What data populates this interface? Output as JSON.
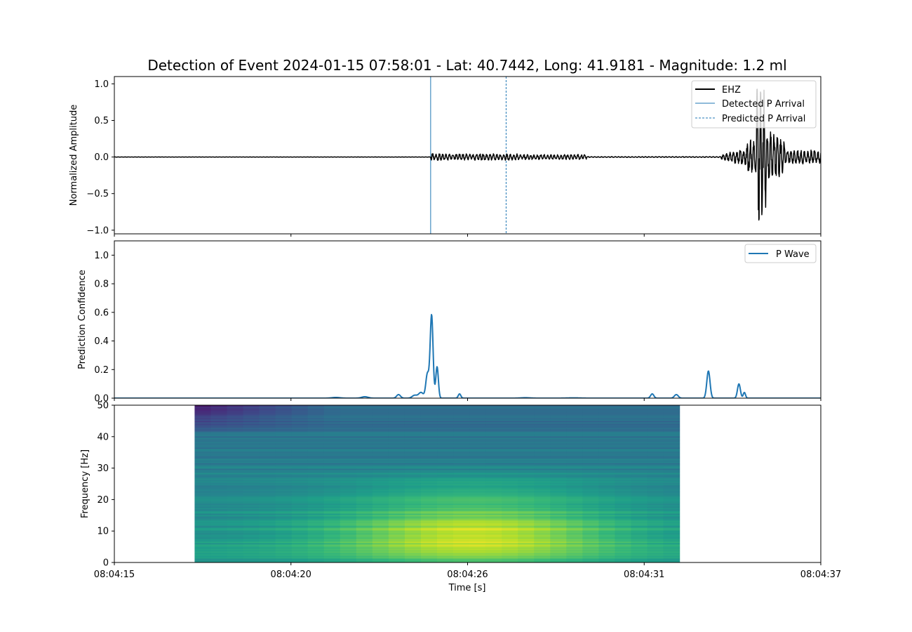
{
  "figure": {
    "title": "Detection of Event 2024-01-15 07:58:01 - Lat: 40.7442, Long: 41.9181 - Magnitude: 1.2 ml"
  },
  "chart_data": [
    {
      "type": "line",
      "panel": "waveform",
      "ylabel": "Normalized Amplitude",
      "ylim": [
        -1.05,
        1.1
      ],
      "yticks": [
        -1.0,
        -0.5,
        0.0,
        0.5,
        1.0
      ],
      "ytick_labels": [
        "−1.0",
        "−0.5",
        "0.0",
        "0.5",
        "1.0"
      ],
      "xlim_seconds": [
        0,
        22
      ],
      "series": [
        {
          "name": "EHZ",
          "color": "#000000",
          "description_points": [
            {
              "t": 0,
              "amp": 0.0
            },
            {
              "t": 9.85,
              "amp": 0.0
            },
            {
              "t": 9.85,
              "amp_envelope": 0.06
            },
            {
              "t": 14.7,
              "amp_envelope": 0.04
            },
            {
              "t": 18.9,
              "amp_envelope": 0.02
            },
            {
              "t": 19.8,
              "amp_envelope": 0.15
            },
            {
              "t": 20.05,
              "amp_envelope": 0.95
            },
            {
              "t": 20.9,
              "amp_envelope": 0.3
            },
            {
              "t": 22,
              "amp_envelope": 0.08
            }
          ]
        }
      ],
      "vlines": [
        {
          "name": "Detected P Arrival",
          "t": 9.85,
          "style": "solid",
          "color": "#1f77b4"
        },
        {
          "name": "Predicted P Arrival",
          "t": 12.2,
          "style": "dashed",
          "color": "#1f77b4"
        }
      ],
      "legend": {
        "placement": "upper right",
        "entries": [
          "EHZ",
          "Detected P Arrival",
          "Predicted P Arrival"
        ]
      }
    },
    {
      "type": "line",
      "panel": "prediction",
      "ylabel": "Prediction Confidence",
      "ylim": [
        0,
        1.1
      ],
      "yticks": [
        0.0,
        0.2,
        0.4,
        0.6,
        0.8,
        1.0
      ],
      "ytick_labels": [
        "0.0",
        "0.2",
        "0.4",
        "0.6",
        "0.8",
        "1.0"
      ],
      "xlim_seconds": [
        0,
        22
      ],
      "series": [
        {
          "name": "P Wave",
          "color": "#1f77b4",
          "peaks": [
            {
              "t": 6.9,
              "value": 0.005,
              "width": 0.25
            },
            {
              "t": 7.8,
              "value": 0.01,
              "width": 0.2
            },
            {
              "t": 8.85,
              "value": 0.025,
              "width": 0.12
            },
            {
              "t": 9.35,
              "value": 0.02,
              "width": 0.15
            },
            {
              "t": 9.55,
              "value": 0.04,
              "width": 0.15
            },
            {
              "t": 9.75,
              "value": 0.17,
              "width": 0.1
            },
            {
              "t": 9.88,
              "value": 0.58,
              "width": 0.09
            },
            {
              "t": 10.05,
              "value": 0.22,
              "width": 0.08
            },
            {
              "t": 10.75,
              "value": 0.03,
              "width": 0.08
            },
            {
              "t": 12.8,
              "value": 0.003,
              "width": 0.3
            },
            {
              "t": 14.3,
              "value": 0.002,
              "width": 0.4
            },
            {
              "t": 16.75,
              "value": 0.03,
              "width": 0.1
            },
            {
              "t": 17.5,
              "value": 0.025,
              "width": 0.12
            },
            {
              "t": 18.5,
              "value": 0.19,
              "width": 0.1
            },
            {
              "t": 19.45,
              "value": 0.1,
              "width": 0.09
            },
            {
              "t": 19.62,
              "value": 0.04,
              "width": 0.07
            }
          ]
        }
      ],
      "legend": {
        "placement": "upper right",
        "entries": [
          "P Wave"
        ]
      }
    },
    {
      "type": "heatmap",
      "panel": "spectrogram",
      "ylabel": "Frequency [Hz]",
      "xlabel": "Time [s]",
      "ylim": [
        0,
        50
      ],
      "yticks": [
        0,
        10,
        20,
        30,
        40,
        50
      ],
      "ytick_labels": [
        "0",
        "10",
        "20",
        "30",
        "40",
        "50"
      ],
      "xlim_seconds": [
        0,
        22
      ],
      "data_extent_seconds": [
        2.5,
        17.6
      ],
      "data_extent_hz": [
        0,
        50
      ],
      "colormap": "viridis",
      "xticks_seconds": [
        0,
        5.5,
        11,
        16.5,
        22
      ],
      "xtick_labels": [
        "08:04:15",
        "08:04:20",
        "08:04:26",
        "08:04:31",
        "08:04:37"
      ]
    }
  ]
}
